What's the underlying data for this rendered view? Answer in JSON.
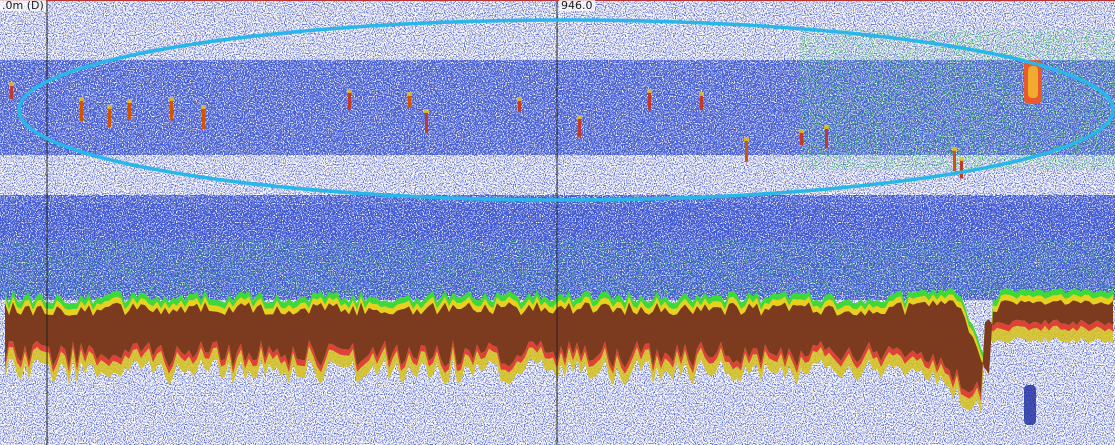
{
  "labels": {
    "left": ".0m (D)",
    "center": "946.0"
  }
}
